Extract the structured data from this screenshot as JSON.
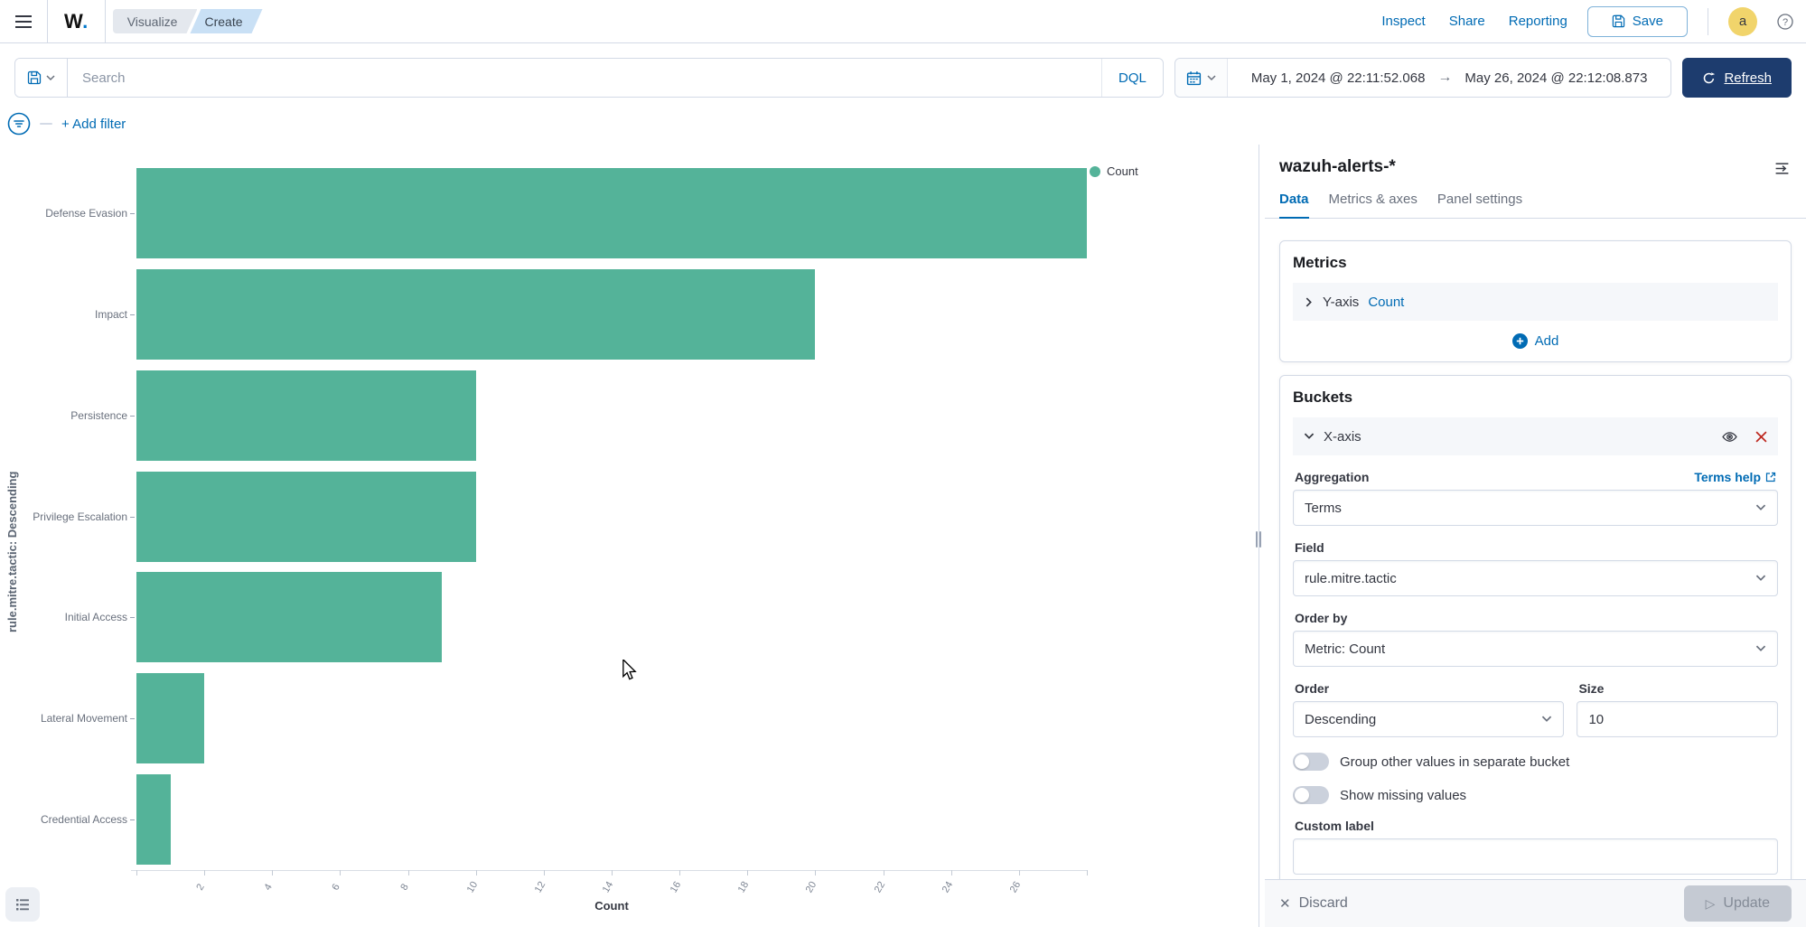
{
  "header": {
    "logo_text": "W",
    "logo_dot": ".",
    "breadcrumbs": [
      "Visualize",
      "Create"
    ],
    "nav_links": [
      "Inspect",
      "Share",
      "Reporting"
    ],
    "save_label": "Save",
    "avatar_initial": "a"
  },
  "query_bar": {
    "search_placeholder": "Search",
    "dql_label": "DQL",
    "date_from": "May 1, 2024 @ 22:11:52.068",
    "date_to": "May 26, 2024 @ 22:12:08.873",
    "refresh_label": "Refresh"
  },
  "filter_bar": {
    "add_filter_label": "+ Add filter"
  },
  "chart_data": {
    "type": "bar",
    "orientation": "horizontal",
    "categories": [
      "Defense Evasion",
      "Impact",
      "Persistence",
      "Privilege Escalation",
      "Initial Access",
      "Lateral Movement",
      "Credential Access"
    ],
    "values": [
      28,
      20,
      10,
      10,
      9,
      2,
      1
    ],
    "xlabel": "Count",
    "ylabel": "rule.mitre.tactic: Descending",
    "xlim": [
      0,
      28
    ],
    "x_ticks": [
      2,
      4,
      6,
      8,
      10,
      12,
      14,
      16,
      18,
      20,
      22,
      24,
      26
    ],
    "legend": [
      {
        "label": "Count",
        "color": "#54B399"
      }
    ],
    "legend_position": "top-right",
    "bar_color": "#54B399",
    "grid": false
  },
  "side_panel": {
    "title": "wazuh-alerts-*",
    "tabs": [
      {
        "label": "Data",
        "active": true
      },
      {
        "label": "Metrics & axes",
        "active": false
      },
      {
        "label": "Panel settings",
        "active": false
      }
    ],
    "metrics": {
      "heading": "Metrics",
      "row_label": "Y-axis",
      "row_value": "Count",
      "add_label": "Add"
    },
    "buckets": {
      "heading": "Buckets",
      "accordion_label": "X-axis",
      "aggregation_label": "Aggregation",
      "terms_help_label": "Terms help",
      "aggregation_value": "Terms",
      "field_label": "Field",
      "field_value": "rule.mitre.tactic",
      "order_by_label": "Order by",
      "order_by_value": "Metric: Count",
      "order_label": "Order",
      "order_value": "Descending",
      "size_label": "Size",
      "size_value": "10",
      "toggle_group_other_label": "Group other values in separate bucket",
      "toggle_group_other_on": false,
      "toggle_show_missing_label": "Show missing values",
      "toggle_show_missing_on": false,
      "custom_label_label": "Custom label",
      "custom_label_value": ""
    },
    "footer": {
      "discard_label": "Discard",
      "update_label": "Update"
    }
  },
  "colors": {
    "accent_blue": "#006BB4",
    "bar_teal": "#54B399",
    "refresh_navy": "#1D3C6E",
    "avatar_yellow": "#F1D46B",
    "danger_red": "#BD271E",
    "border_gray": "#D3DAE6"
  }
}
